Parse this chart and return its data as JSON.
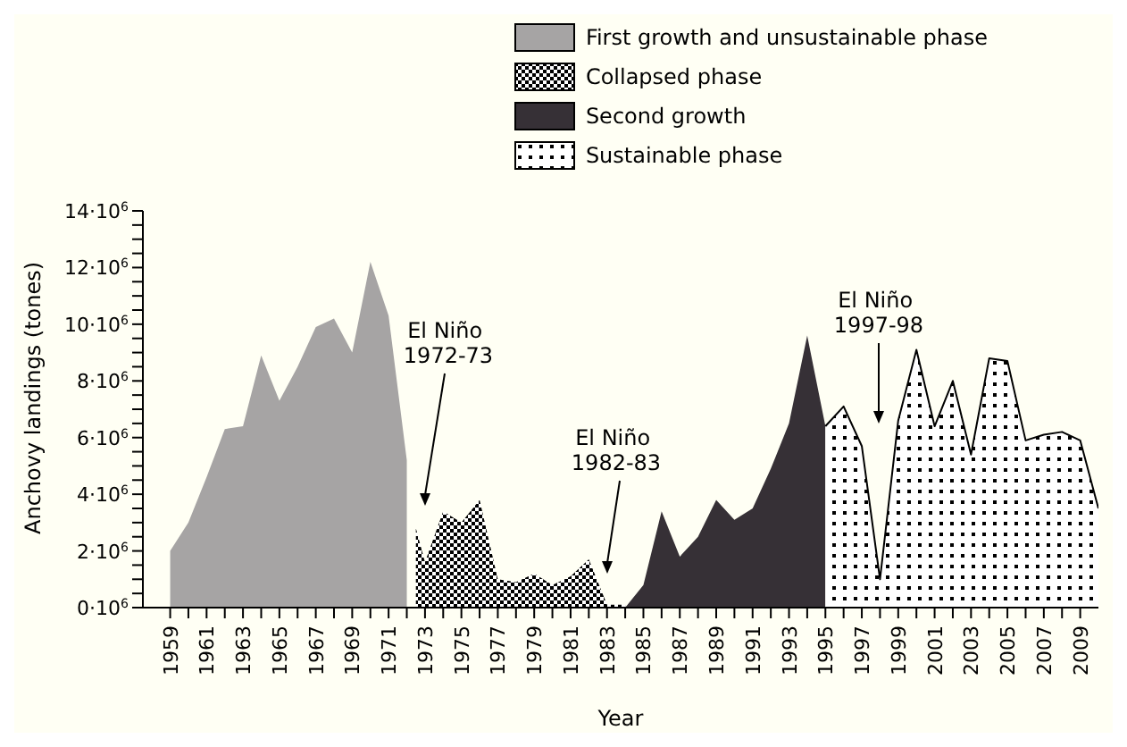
{
  "chart_data": {
    "type": "area",
    "xlabel": "Year",
    "ylabel": "Anchovy landings (tones)",
    "legend": "top right",
    "series": [
      {
        "name": "First growth and unsustainable phase",
        "color": "#a6a4a4",
        "x": [
          1959,
          1960,
          1961,
          1962,
          1963,
          1964,
          1965,
          1966,
          1967,
          1968,
          1969,
          1970,
          1971,
          1972
        ],
        "values": [
          2000000,
          3000000,
          4600000,
          6300000,
          6400000,
          8900000,
          7300000,
          8500000,
          9900000,
          10200000,
          9000000,
          12200000,
          10300000,
          5200000
        ]
      },
      {
        "name": "Collapsed phase",
        "color": "#000000",
        "x": [
          1972.5,
          1973,
          1974,
          1975,
          1976,
          1977,
          1978,
          1979,
          1980,
          1981,
          1982,
          1983,
          1984
        ],
        "values": [
          2800000,
          1600000,
          3400000,
          3000000,
          3800000,
          1000000,
          900000,
          1200000,
          800000,
          1100000,
          1700000,
          100000,
          100000
        ]
      },
      {
        "name": "Second growth",
        "color": "#363036",
        "x": [
          1984,
          1985,
          1986,
          1987,
          1988,
          1989,
          1990,
          1991,
          1992,
          1993,
          1994,
          1995
        ],
        "values": [
          0,
          800000,
          3400000,
          1800000,
          2500000,
          3800000,
          3100000,
          3500000,
          4900000,
          6500000,
          9600000,
          6400000
        ]
      },
      {
        "name": "Sustainable phase",
        "color": "#000000",
        "x": [
          1995,
          1996,
          1997,
          1998,
          1999,
          2000,
          2001,
          2002,
          2003,
          2004,
          2005,
          2006,
          2007,
          2008,
          2009,
          2010
        ],
        "values": [
          6400000,
          7100000,
          5700000,
          1000000,
          6600000,
          9100000,
          6400000,
          8000000,
          5400000,
          8800000,
          8700000,
          5900000,
          6100000,
          6200000,
          5900000,
          3500000
        ]
      }
    ],
    "xlim": [
      1957.5,
      2010
    ],
    "xticks": [
      {
        "value": 1959,
        "label": "1959"
      },
      {
        "value": 1960,
        "label": null
      },
      {
        "value": 1961,
        "label": "1961"
      },
      {
        "value": 1962,
        "label": null
      },
      {
        "value": 1963,
        "label": "1963"
      },
      {
        "value": 1964,
        "label": null
      },
      {
        "value": 1965,
        "label": "1965"
      },
      {
        "value": 1966,
        "label": null
      },
      {
        "value": 1967,
        "label": "1967"
      },
      {
        "value": 1968,
        "label": null
      },
      {
        "value": 1969,
        "label": "1969"
      },
      {
        "value": 1970,
        "label": null
      },
      {
        "value": 1971,
        "label": "1971"
      },
      {
        "value": 1972,
        "label": null
      },
      {
        "value": 1973,
        "label": "1973"
      },
      {
        "value": 1974,
        "label": null
      },
      {
        "value": 1975,
        "label": "1975"
      },
      {
        "value": 1976,
        "label": null
      },
      {
        "value": 1977,
        "label": "1977"
      },
      {
        "value": 1978,
        "label": null
      },
      {
        "value": 1979,
        "label": "1979"
      },
      {
        "value": 1980,
        "label": null
      },
      {
        "value": 1981,
        "label": "1981"
      },
      {
        "value": 1982,
        "label": null
      },
      {
        "value": 1983,
        "label": "1983"
      },
      {
        "value": 1984,
        "label": null
      },
      {
        "value": 1985,
        "label": "1985"
      },
      {
        "value": 1986,
        "label": null
      },
      {
        "value": 1987,
        "label": "1987"
      },
      {
        "value": 1988,
        "label": null
      },
      {
        "value": 1989,
        "label": "1989"
      },
      {
        "value": 1990,
        "label": null
      },
      {
        "value": 1991,
        "label": "1991"
      },
      {
        "value": 1992,
        "label": null
      },
      {
        "value": 1993,
        "label": "1993"
      },
      {
        "value": 1994,
        "label": null
      },
      {
        "value": 1995,
        "label": "1995"
      },
      {
        "value": 1996,
        "label": null
      },
      {
        "value": 1997,
        "label": "1997"
      },
      {
        "value": 1998,
        "label": null
      },
      {
        "value": 1999,
        "label": "1999"
      },
      {
        "value": 2000,
        "label": null
      },
      {
        "value": 2001,
        "label": "2001"
      },
      {
        "value": 2002,
        "label": null
      },
      {
        "value": 2003,
        "label": "2003"
      },
      {
        "value": 2004,
        "label": null
      },
      {
        "value": 2005,
        "label": "2005"
      },
      {
        "value": 2006,
        "label": null
      },
      {
        "value": 2007,
        "label": "2007"
      },
      {
        "value": 2008,
        "label": null
      },
      {
        "value": 2009,
        "label": "2009"
      }
    ],
    "ylim": [
      0,
      14000000
    ],
    "yticks": [
      {
        "value": 0,
        "label": "0·10$^{6}$"
      },
      {
        "value": 500000,
        "label": null
      },
      {
        "value": 1000000,
        "label": null
      },
      {
        "value": 1500000,
        "label": null
      },
      {
        "value": 2000000,
        "label": "2·10$^{6}$"
      },
      {
        "value": 2500000,
        "label": null
      },
      {
        "value": 3000000,
        "label": null
      },
      {
        "value": 3500000,
        "label": null
      },
      {
        "value": 4000000,
        "label": "4·10$^{6}$"
      },
      {
        "value": 4500000,
        "label": null
      },
      {
        "value": 5000000,
        "label": null
      },
      {
        "value": 5500000,
        "label": null
      },
      {
        "value": 6000000,
        "label": "6·10$^{6}$"
      },
      {
        "value": 6500000,
        "label": null
      },
      {
        "value": 7000000,
        "label": null
      },
      {
        "value": 7500000,
        "label": null
      },
      {
        "value": 8000000,
        "label": "8·10$^{6}$"
      },
      {
        "value": 8500000,
        "label": null
      },
      {
        "value": 9000000,
        "label": null
      },
      {
        "value": 9500000,
        "label": null
      },
      {
        "value": 10000000,
        "label": "10·10$^{6}$"
      },
      {
        "value": 10500000,
        "label": null
      },
      {
        "value": 11000000,
        "label": null
      },
      {
        "value": 11500000,
        "label": null
      },
      {
        "value": 12000000,
        "label": "12·10$^{6}$"
      },
      {
        "value": 12500000,
        "label": null
      },
      {
        "value": 13000000,
        "label": null
      },
      {
        "value": 13500000,
        "label": null
      },
      {
        "value": 14000000,
        "label": "14·10$^{6}$"
      }
    ],
    "annotations": [
      "El Niño 1972-73",
      "El Niño 1982-83",
      "El Niño 1997-98"
    ]
  }
}
